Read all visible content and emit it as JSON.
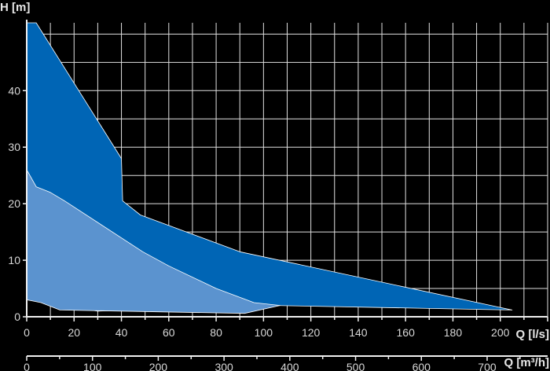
{
  "chart_data": {
    "type": "area",
    "y_axis": {
      "label": "H [m]",
      "range": [
        0,
        52
      ],
      "ticks": [
        0,
        10,
        20,
        30,
        40
      ]
    },
    "x_axis": {
      "label": "Q [l/s]",
      "range": [
        0,
        220
      ],
      "ticks": [
        0,
        20,
        40,
        60,
        80,
        100,
        120,
        140,
        160,
        180,
        200
      ]
    },
    "x2_axis": {
      "label": "Q [m³/h]",
      "ticks": [
        0,
        100,
        200,
        300,
        400,
        500,
        600,
        700
      ]
    },
    "grid": true,
    "colors": {
      "outer": "#0065b5",
      "inner": "#5b93cf",
      "grid": "#e0e0e0",
      "background": "#000000"
    },
    "series": [
      {
        "points": [
          [
            0,
            52
          ],
          [
            4,
            52
          ],
          [
            40,
            28
          ],
          [
            40.5,
            20.5
          ],
          [
            48,
            18
          ],
          [
            90,
            11.5
          ],
          [
            205,
            1.2
          ],
          [
            104,
            2
          ],
          [
            30,
            1
          ],
          [
            0,
            3
          ]
        ]
      },
      {
        "points": [
          [
            0,
            26
          ],
          [
            4,
            23
          ],
          [
            10,
            22
          ],
          [
            16,
            20.5
          ],
          [
            49,
            11.5
          ],
          [
            60,
            9
          ],
          [
            80,
            5
          ],
          [
            96,
            2.5
          ],
          [
            107,
            2
          ],
          [
            92,
            0.6
          ],
          [
            14,
            1.2
          ],
          [
            6,
            2.5
          ],
          [
            0,
            3
          ]
        ]
      }
    ]
  }
}
